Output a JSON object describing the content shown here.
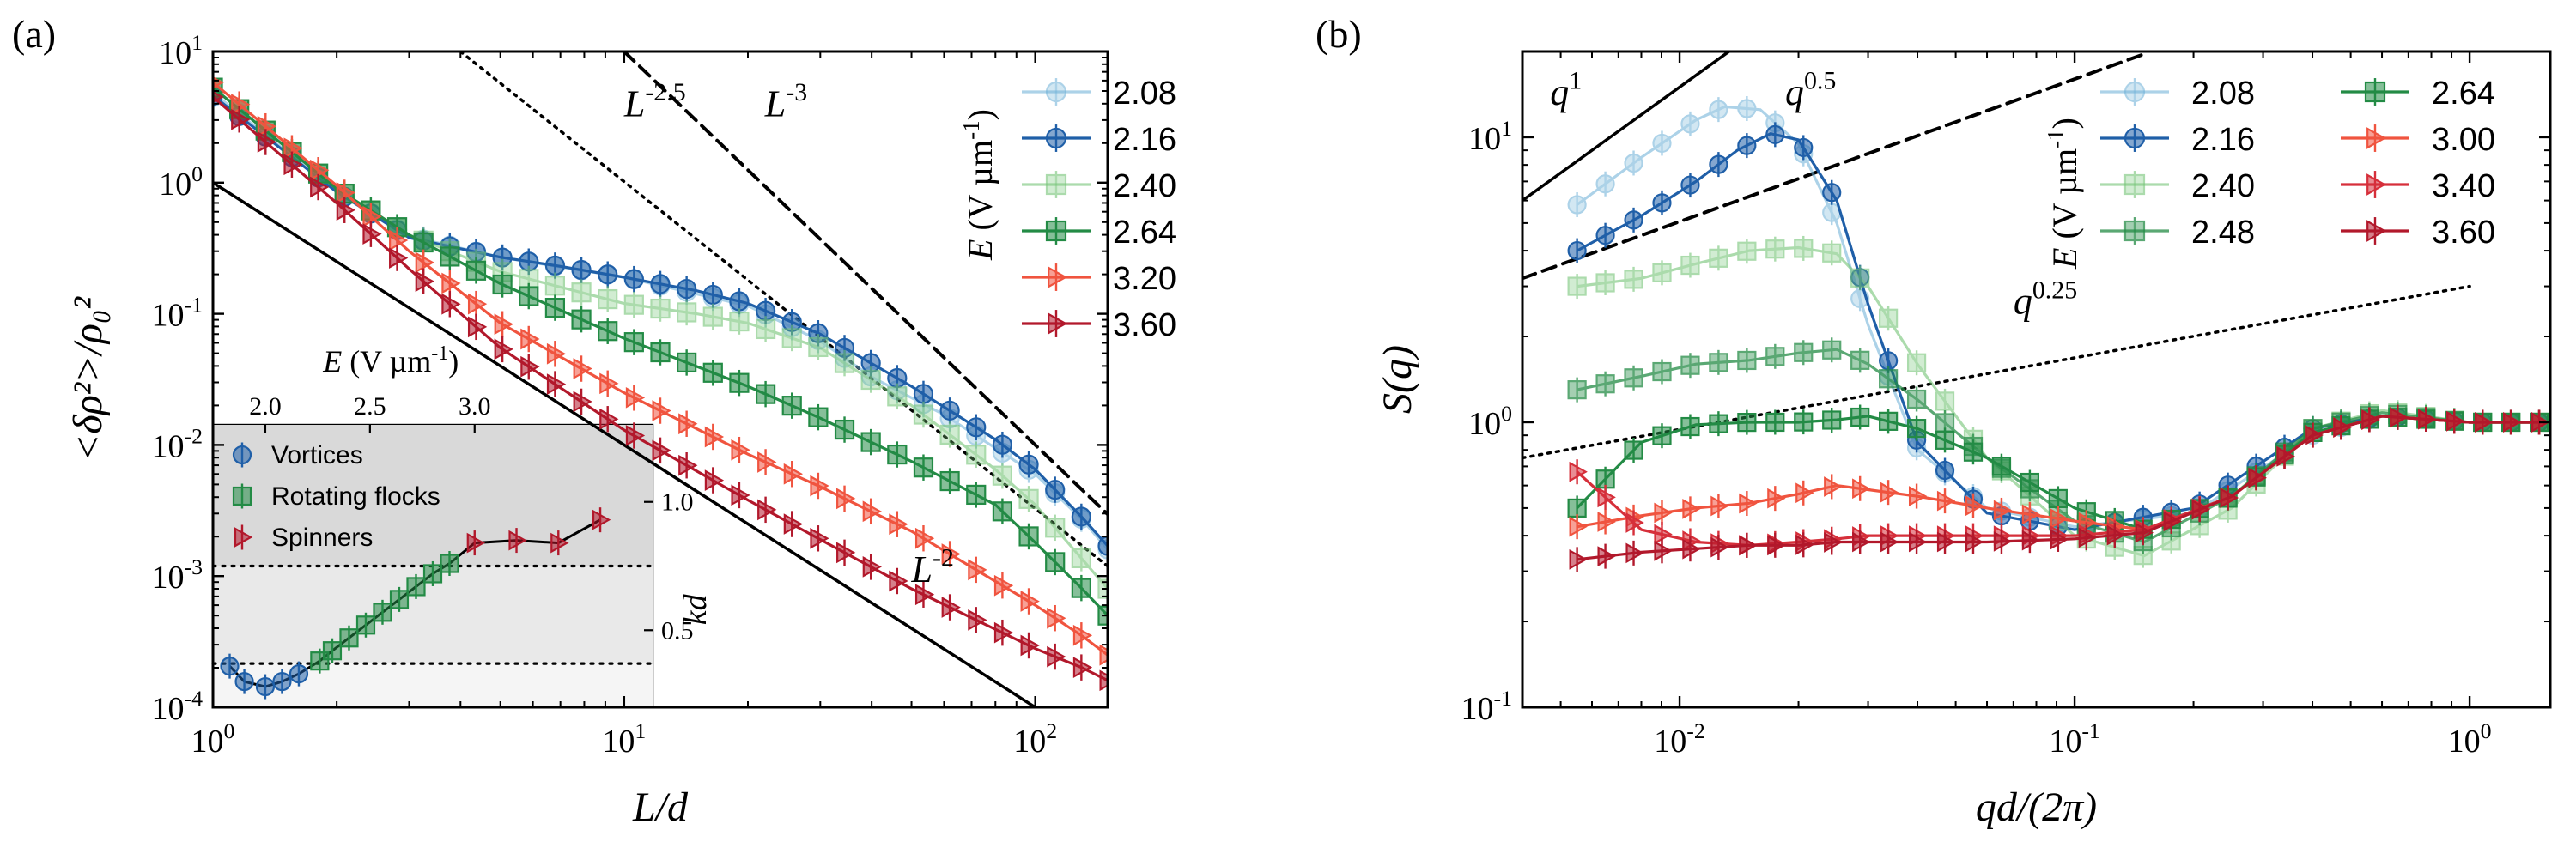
{
  "chart_data": [
    {
      "panel": "(a)",
      "type": "line",
      "scale": "log-log",
      "xlabel": "L/d",
      "ylabel": "<δρ²>/ρ₀²",
      "xlim": [
        1,
        150
      ],
      "ylim": [
        0.0001,
        10
      ],
      "x_ticks": [
        {
          "v": 1,
          "m": "10",
          "e": "0"
        },
        {
          "v": 10,
          "m": "10",
          "e": "1"
        },
        {
          "v": 100,
          "m": "10",
          "e": "2"
        }
      ],
      "y_ticks": [
        {
          "v": 0.0001,
          "m": "10",
          "e": "-4"
        },
        {
          "v": 0.001,
          "m": "10",
          "e": "-3"
        },
        {
          "v": 0.01,
          "m": "10",
          "e": "-2"
        },
        {
          "v": 0.1,
          "m": "10",
          "e": "-1"
        },
        {
          "v": 1,
          "m": "10",
          "e": "0"
        },
        {
          "v": 10,
          "m": "10",
          "e": "1"
        }
      ],
      "legend_title": "E (V µm⁻¹)",
      "legend_title_parts": {
        "var": "E",
        "unit": " (V µm",
        "exp": "-1",
        "close": ")"
      },
      "legend_position": "top-right",
      "series": [
        {
          "name": "2.08",
          "color": "#6aaed6",
          "marker": "circle",
          "alpha": 0.55,
          "x": [
            1,
            1.05,
            2,
            3,
            5,
            10,
            20,
            30,
            40,
            60,
            100,
            130,
            150
          ],
          "y": [
            4.5,
            4.3,
            0.85,
            0.39,
            0.27,
            0.19,
            0.115,
            0.062,
            0.033,
            0.017,
            0.006,
            0.0027,
            0.0016
          ]
        },
        {
          "name": "2.16",
          "color": "#1f5fa8",
          "marker": "circle",
          "alpha": 1,
          "x": [
            1,
            2,
            3,
            5,
            7,
            10,
            15,
            20,
            30,
            50,
            80,
            100,
            130,
            150
          ],
          "y": [
            4.6,
            0.85,
            0.38,
            0.27,
            0.23,
            0.19,
            0.15,
            0.12,
            0.07,
            0.028,
            0.011,
            0.0065,
            0.0028,
            0.0017
          ]
        },
        {
          "name": "2.40",
          "color": "#74c476",
          "marker": "square",
          "alpha": 0.6,
          "x": [
            1,
            2,
            3,
            5,
            10,
            15,
            20,
            30,
            50,
            80,
            100,
            150
          ],
          "y": [
            5.3,
            0.9,
            0.4,
            0.21,
            0.12,
            0.1,
            0.085,
            0.055,
            0.02,
            0.0065,
            0.0035,
            0.0008
          ]
        },
        {
          "name": "2.64",
          "color": "#238b45",
          "marker": "square",
          "alpha": 1,
          "x": [
            1,
            2,
            3,
            5,
            10,
            20,
            30,
            50,
            80,
            100,
            130,
            150
          ],
          "y": [
            5.3,
            0.9,
            0.4,
            0.17,
            0.065,
            0.028,
            0.016,
            0.0075,
            0.0035,
            0.0018,
            0.0008,
            0.0005
          ]
        },
        {
          "name": "3.20",
          "color": "#f0543f",
          "marker": "tri-right",
          "alpha": 1,
          "x": [
            1,
            2,
            3,
            5,
            10,
            20,
            30,
            50,
            100,
            130,
            150
          ],
          "y": [
            5.8,
            0.95,
            0.3,
            0.085,
            0.025,
            0.0085,
            0.0048,
            0.0022,
            0.0006,
            0.00035,
            0.00025
          ]
        },
        {
          "name": "3.60",
          "color": "#b2182b",
          "marker": "tri-right",
          "alpha": 1,
          "x": [
            1,
            2,
            3,
            5,
            10,
            20,
            30,
            50,
            100,
            130,
            150
          ],
          "y": [
            4.5,
            0.7,
            0.22,
            0.055,
            0.013,
            0.0038,
            0.0019,
            0.0008,
            0.00028,
            0.0002,
            0.00016
          ]
        }
      ],
      "reference_lines": [
        {
          "label_base": "L",
          "label_exp": "-2",
          "style": "solid",
          "x": [
            1,
            150
          ],
          "y": [
            1,
            4.44e-05
          ],
          "label_at": [
            50,
            0.0009
          ]
        },
        {
          "label_base": "L",
          "label_exp": "-2.5",
          "style": "dotted",
          "x": [
            4,
            150
          ],
          "y": [
            10,
            0.00119
          ],
          "label_at": [
            10,
            3.2
          ]
        },
        {
          "label_base": "L",
          "label_exp": "-3",
          "style": "dashed",
          "x": [
            10,
            150
          ],
          "y": [
            10,
            0.00296
          ],
          "label_at": [
            22,
            3.2
          ]
        }
      ],
      "inset": {
        "xlabel_top": "E (V µm⁻¹)",
        "xlabel_parts": {
          "var": "E",
          "unit": " (V µm",
          "exp": "-1",
          "close": ")"
        },
        "ylabel_right": "kd",
        "xlim": [
          1.75,
          3.85
        ],
        "ylim": [
          0.2,
          1.3
        ],
        "x_ticks": [
          "2.0",
          "2.5",
          "3.0"
        ],
        "y_ticks": [
          "0.5",
          "1.0"
        ],
        "hlines": [
          0.37,
          0.75
        ],
        "legend": [
          {
            "label": "Vortices",
            "color": "#1f5fa8",
            "marker": "circle"
          },
          {
            "label": "Rotating flocks",
            "color": "#238b45",
            "marker": "square"
          },
          {
            "label": "Spinners",
            "color": "#b2182b",
            "marker": "tri-right"
          }
        ],
        "points": [
          {
            "E": 1.83,
            "kd": 0.36,
            "c": "#1f5fa8",
            "m": "circle"
          },
          {
            "E": 1.9,
            "kd": 0.3,
            "c": "#1f5fa8",
            "m": "circle"
          },
          {
            "E": 2.0,
            "kd": 0.28,
            "c": "#1f5fa8",
            "m": "circle"
          },
          {
            "E": 2.08,
            "kd": 0.3,
            "c": "#1f5fa8",
            "m": "circle"
          },
          {
            "E": 2.16,
            "kd": 0.33,
            "c": "#1f5fa8",
            "m": "circle"
          },
          {
            "E": 2.26,
            "kd": 0.38,
            "c": "#238b45",
            "m": "square"
          },
          {
            "E": 2.32,
            "kd": 0.42,
            "c": "#238b45",
            "m": "square"
          },
          {
            "E": 2.4,
            "kd": 0.47,
            "c": "#238b45",
            "m": "square"
          },
          {
            "E": 2.48,
            "kd": 0.52,
            "c": "#238b45",
            "m": "square"
          },
          {
            "E": 2.56,
            "kd": 0.57,
            "c": "#238b45",
            "m": "square"
          },
          {
            "E": 2.64,
            "kd": 0.62,
            "c": "#238b45",
            "m": "square"
          },
          {
            "E": 2.72,
            "kd": 0.67,
            "c": "#238b45",
            "m": "square"
          },
          {
            "E": 2.8,
            "kd": 0.72,
            "c": "#238b45",
            "m": "square"
          },
          {
            "E": 2.88,
            "kd": 0.76,
            "c": "#238b45",
            "m": "square"
          },
          {
            "E": 3.0,
            "kd": 0.84,
            "c": "#b2182b",
            "m": "tri-right"
          },
          {
            "E": 3.2,
            "kd": 0.85,
            "c": "#b2182b",
            "m": "tri-right"
          },
          {
            "E": 3.4,
            "kd": 0.84,
            "c": "#b2182b",
            "m": "tri-right"
          },
          {
            "E": 3.6,
            "kd": 0.93,
            "c": "#b2182b",
            "m": "tri-right"
          }
        ]
      }
    },
    {
      "panel": "(b)",
      "type": "line",
      "scale": "log-log",
      "xlabel": "qd/(2π)",
      "ylabel": "S(q)",
      "xlim": [
        0.004,
        1.6
      ],
      "ylim": [
        0.1,
        20
      ],
      "x_ticks": [
        {
          "v": 0.01,
          "m": "10",
          "e": "-2"
        },
        {
          "v": 0.1,
          "m": "10",
          "e": "-1"
        },
        {
          "v": 1,
          "m": "10",
          "e": "0"
        }
      ],
      "y_ticks": [
        {
          "v": 0.1,
          "m": "10",
          "e": "-1"
        },
        {
          "v": 1,
          "m": "10",
          "e": "0"
        },
        {
          "v": 10,
          "m": "10",
          "e": "1"
        }
      ],
      "legend_title": "E (V µm⁻¹)",
      "legend_title_parts": {
        "var": "E",
        "unit": " (V µm",
        "exp": "-1",
        "close": ")"
      },
      "legend_position": "top-right",
      "series": [
        {
          "name": "2.08",
          "color": "#6aaed6",
          "marker": "circle",
          "alpha": 0.55,
          "x": [
            0.0055,
            0.008,
            0.011,
            0.013,
            0.016,
            0.02,
            0.025,
            0.03,
            0.04,
            0.06,
            0.1,
            0.2,
            0.4,
            0.6,
            1.0,
            1.5
          ],
          "y": [
            5.8,
            8.5,
            11.5,
            12.8,
            12.5,
            9.5,
            5.0,
            2.2,
            0.8,
            0.5,
            0.43,
            0.48,
            0.9,
            1.05,
            1.0,
            1.0
          ]
        },
        {
          "name": "2.16",
          "color": "#1f5fa8",
          "marker": "circle",
          "alpha": 1,
          "x": [
            0.0055,
            0.008,
            0.011,
            0.014,
            0.017,
            0.02,
            0.025,
            0.03,
            0.04,
            0.06,
            0.1,
            0.2,
            0.4,
            0.6,
            1.0,
            1.5
          ],
          "y": [
            4.0,
            5.3,
            7.0,
            9.0,
            10.3,
            9.8,
            6.0,
            2.6,
            0.85,
            0.48,
            0.42,
            0.5,
            0.95,
            1.05,
            1.0,
            1.0
          ]
        },
        {
          "name": "2.40",
          "color": "#74c476",
          "marker": "square",
          "alpha": 0.6,
          "x": [
            0.0055,
            0.008,
            0.011,
            0.015,
            0.02,
            0.025,
            0.03,
            0.04,
            0.06,
            0.1,
            0.15,
            0.25,
            0.4,
            0.6,
            1.0,
            1.5
          ],
          "y": [
            3.0,
            3.2,
            3.6,
            4.0,
            4.1,
            3.9,
            3.0,
            1.6,
            0.75,
            0.4,
            0.34,
            0.5,
            0.95,
            1.1,
            1.0,
            1.0
          ]
        },
        {
          "name": "2.48",
          "color": "#238b45",
          "marker": "square",
          "alpha": 0.75,
          "x": [
            0.0055,
            0.008,
            0.011,
            0.015,
            0.02,
            0.025,
            0.03,
            0.04,
            0.06,
            0.1,
            0.15,
            0.25,
            0.4,
            0.6,
            1.0,
            1.5
          ],
          "y": [
            1.3,
            1.45,
            1.6,
            1.65,
            1.75,
            1.8,
            1.6,
            1.2,
            0.75,
            0.45,
            0.38,
            0.55,
            0.95,
            1.08,
            1.0,
            1.0
          ]
        },
        {
          "name": "2.64",
          "color": "#238b45",
          "marker": "square",
          "alpha": 1,
          "x": [
            0.0055,
            0.008,
            0.011,
            0.015,
            0.02,
            0.025,
            0.03,
            0.04,
            0.06,
            0.1,
            0.15,
            0.25,
            0.4,
            0.6,
            1.0,
            1.5
          ],
          "y": [
            0.5,
            0.85,
            0.98,
            1.0,
            1.0,
            1.02,
            1.05,
            0.95,
            0.75,
            0.5,
            0.42,
            0.55,
            0.92,
            1.05,
            1.0,
            1.0
          ]
        },
        {
          "name": "3.00",
          "color": "#f0543f",
          "marker": "tri-right",
          "alpha": 1,
          "x": [
            0.0055,
            0.008,
            0.011,
            0.015,
            0.02,
            0.025,
            0.03,
            0.04,
            0.06,
            0.1,
            0.15,
            0.25,
            0.4,
            0.6,
            1.0,
            1.5
          ],
          "y": [
            0.43,
            0.47,
            0.5,
            0.52,
            0.56,
            0.6,
            0.58,
            0.55,
            0.5,
            0.45,
            0.42,
            0.55,
            0.9,
            1.05,
            1.0,
            1.0
          ]
        },
        {
          "name": "3.40",
          "color": "#d62f3a",
          "marker": "tri-right",
          "alpha": 1,
          "x": [
            0.0055,
            0.008,
            0.011,
            0.015,
            0.02,
            0.025,
            0.03,
            0.04,
            0.06,
            0.1,
            0.15,
            0.25,
            0.4,
            0.6,
            1.0,
            1.5
          ],
          "y": [
            0.67,
            0.42,
            0.38,
            0.37,
            0.38,
            0.39,
            0.4,
            0.4,
            0.4,
            0.4,
            0.42,
            0.55,
            0.9,
            1.05,
            1.0,
            1.0
          ]
        },
        {
          "name": "3.60",
          "color": "#b2182b",
          "marker": "tri-right",
          "alpha": 1,
          "x": [
            0.0055,
            0.008,
            0.011,
            0.015,
            0.02,
            0.025,
            0.03,
            0.04,
            0.06,
            0.1,
            0.15,
            0.25,
            0.4,
            0.6,
            1.0,
            1.5
          ],
          "y": [
            0.33,
            0.35,
            0.36,
            0.37,
            0.37,
            0.38,
            0.38,
            0.38,
            0.38,
            0.39,
            0.41,
            0.55,
            0.9,
            1.05,
            1.0,
            1.0
          ]
        }
      ],
      "reference_lines": [
        {
          "label_base": "q",
          "label_exp": "1",
          "style": "solid",
          "x": [
            0.004,
            0.05
          ],
          "y": [
            6.0,
            75
          ],
          "label_at": [
            0.0047,
            13
          ]
        },
        {
          "label_base": "q",
          "label_exp": "0.5",
          "style": "dashed",
          "x": [
            0.004,
            0.15
          ],
          "y": [
            3.2,
            19.6
          ],
          "label_at": [
            0.0185,
            13
          ]
        },
        {
          "label_base": "q",
          "label_exp": "0.25",
          "style": "dotted",
          "x": [
            0.004,
            1.0
          ],
          "y": [
            0.75,
            3.0
          ],
          "label_at": [
            0.07,
            2.4
          ]
        }
      ]
    }
  ]
}
